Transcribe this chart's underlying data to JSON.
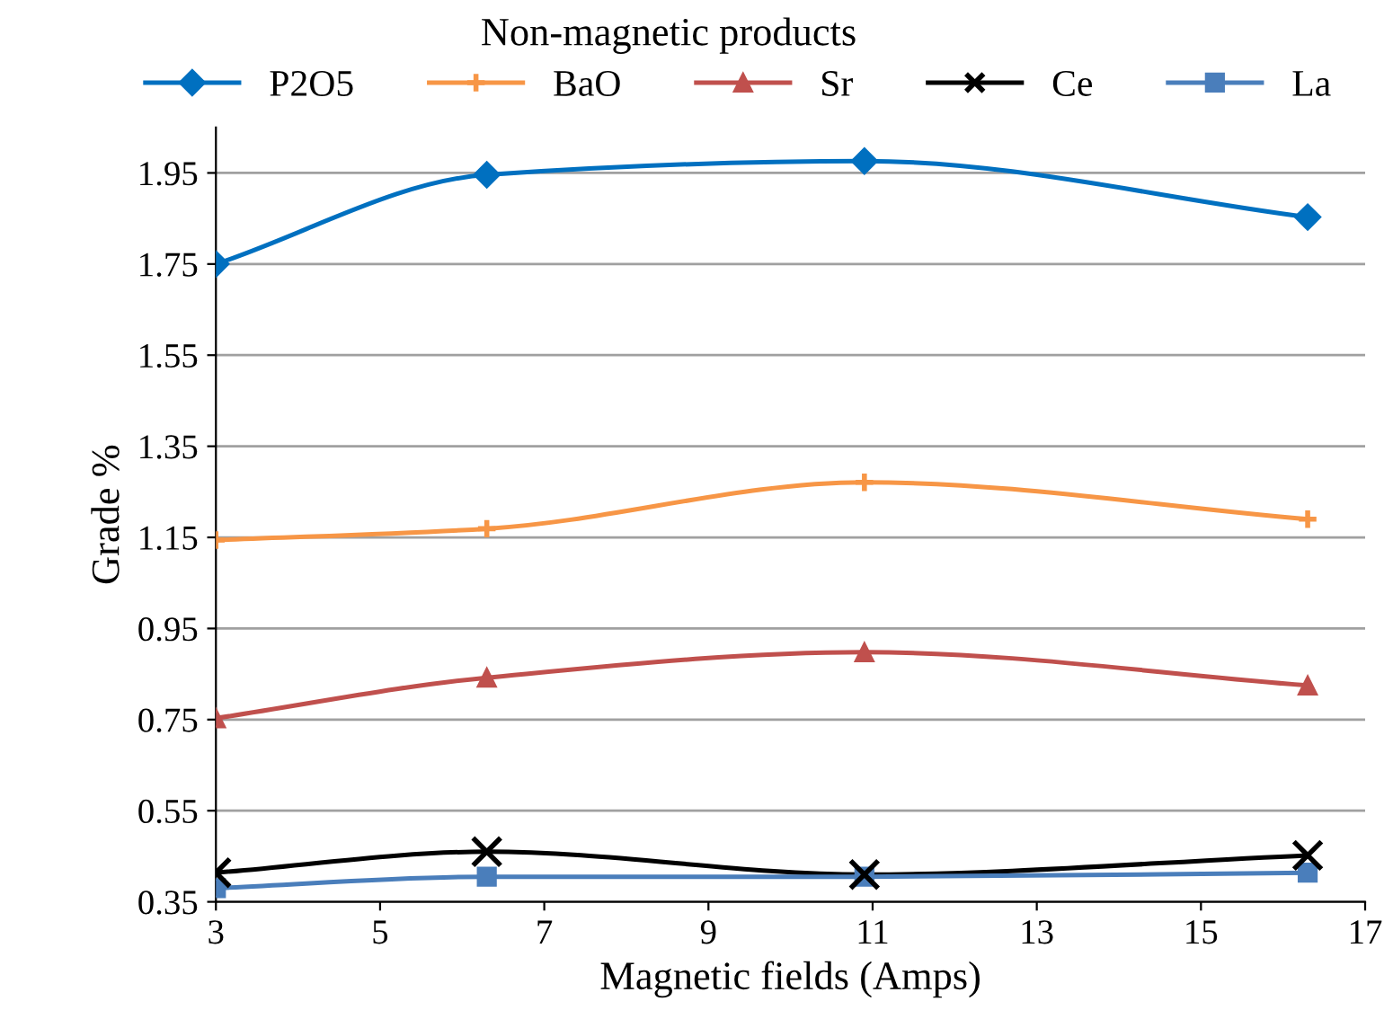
{
  "chart_data": {
    "type": "line",
    "title": "Non-magnetic products",
    "xlabel": "Magnetic fields (Amps)",
    "ylabel": "Grade %",
    "xlim": [
      3,
      17
    ],
    "xticks": [
      3,
      5,
      7,
      9,
      11,
      13,
      15,
      17
    ],
    "ylim": [
      0.35,
      2.05
    ],
    "yticks": [
      0.35,
      0.55,
      0.75,
      0.95,
      1.15,
      1.35,
      1.55,
      1.75,
      1.95
    ],
    "grid": "y",
    "legend": "top",
    "series": [
      {
        "name": "P2O5",
        "color": "#0070c0",
        "marker": "diamond",
        "x": [
          3,
          6.3,
          10.9,
          16.3
        ],
        "values": [
          1.75,
          1.946,
          1.976,
          1.853
        ]
      },
      {
        "name": "BaO",
        "color": "#f79646",
        "marker": "plus",
        "x": [
          3,
          6.3,
          10.9,
          16.3
        ],
        "values": [
          1.144,
          1.169,
          1.271,
          1.19
        ]
      },
      {
        "name": "Sr",
        "color": "#c0504d",
        "marker": "triangle",
        "x": [
          3,
          6.3,
          10.9,
          16.3
        ],
        "values": [
          0.753,
          0.842,
          0.898,
          0.825
        ]
      },
      {
        "name": "Ce",
        "color": "#000000",
        "marker": "cross",
        "x": [
          3,
          6.3,
          10.9,
          16.3
        ],
        "values": [
          0.414,
          0.46,
          0.41,
          0.452
        ]
      },
      {
        "name": "La",
        "color": "#4a7ebb",
        "marker": "square",
        "x": [
          3,
          6.3,
          10.9,
          16.3
        ],
        "values": [
          0.38,
          0.405,
          0.405,
          0.414
        ]
      }
    ]
  }
}
